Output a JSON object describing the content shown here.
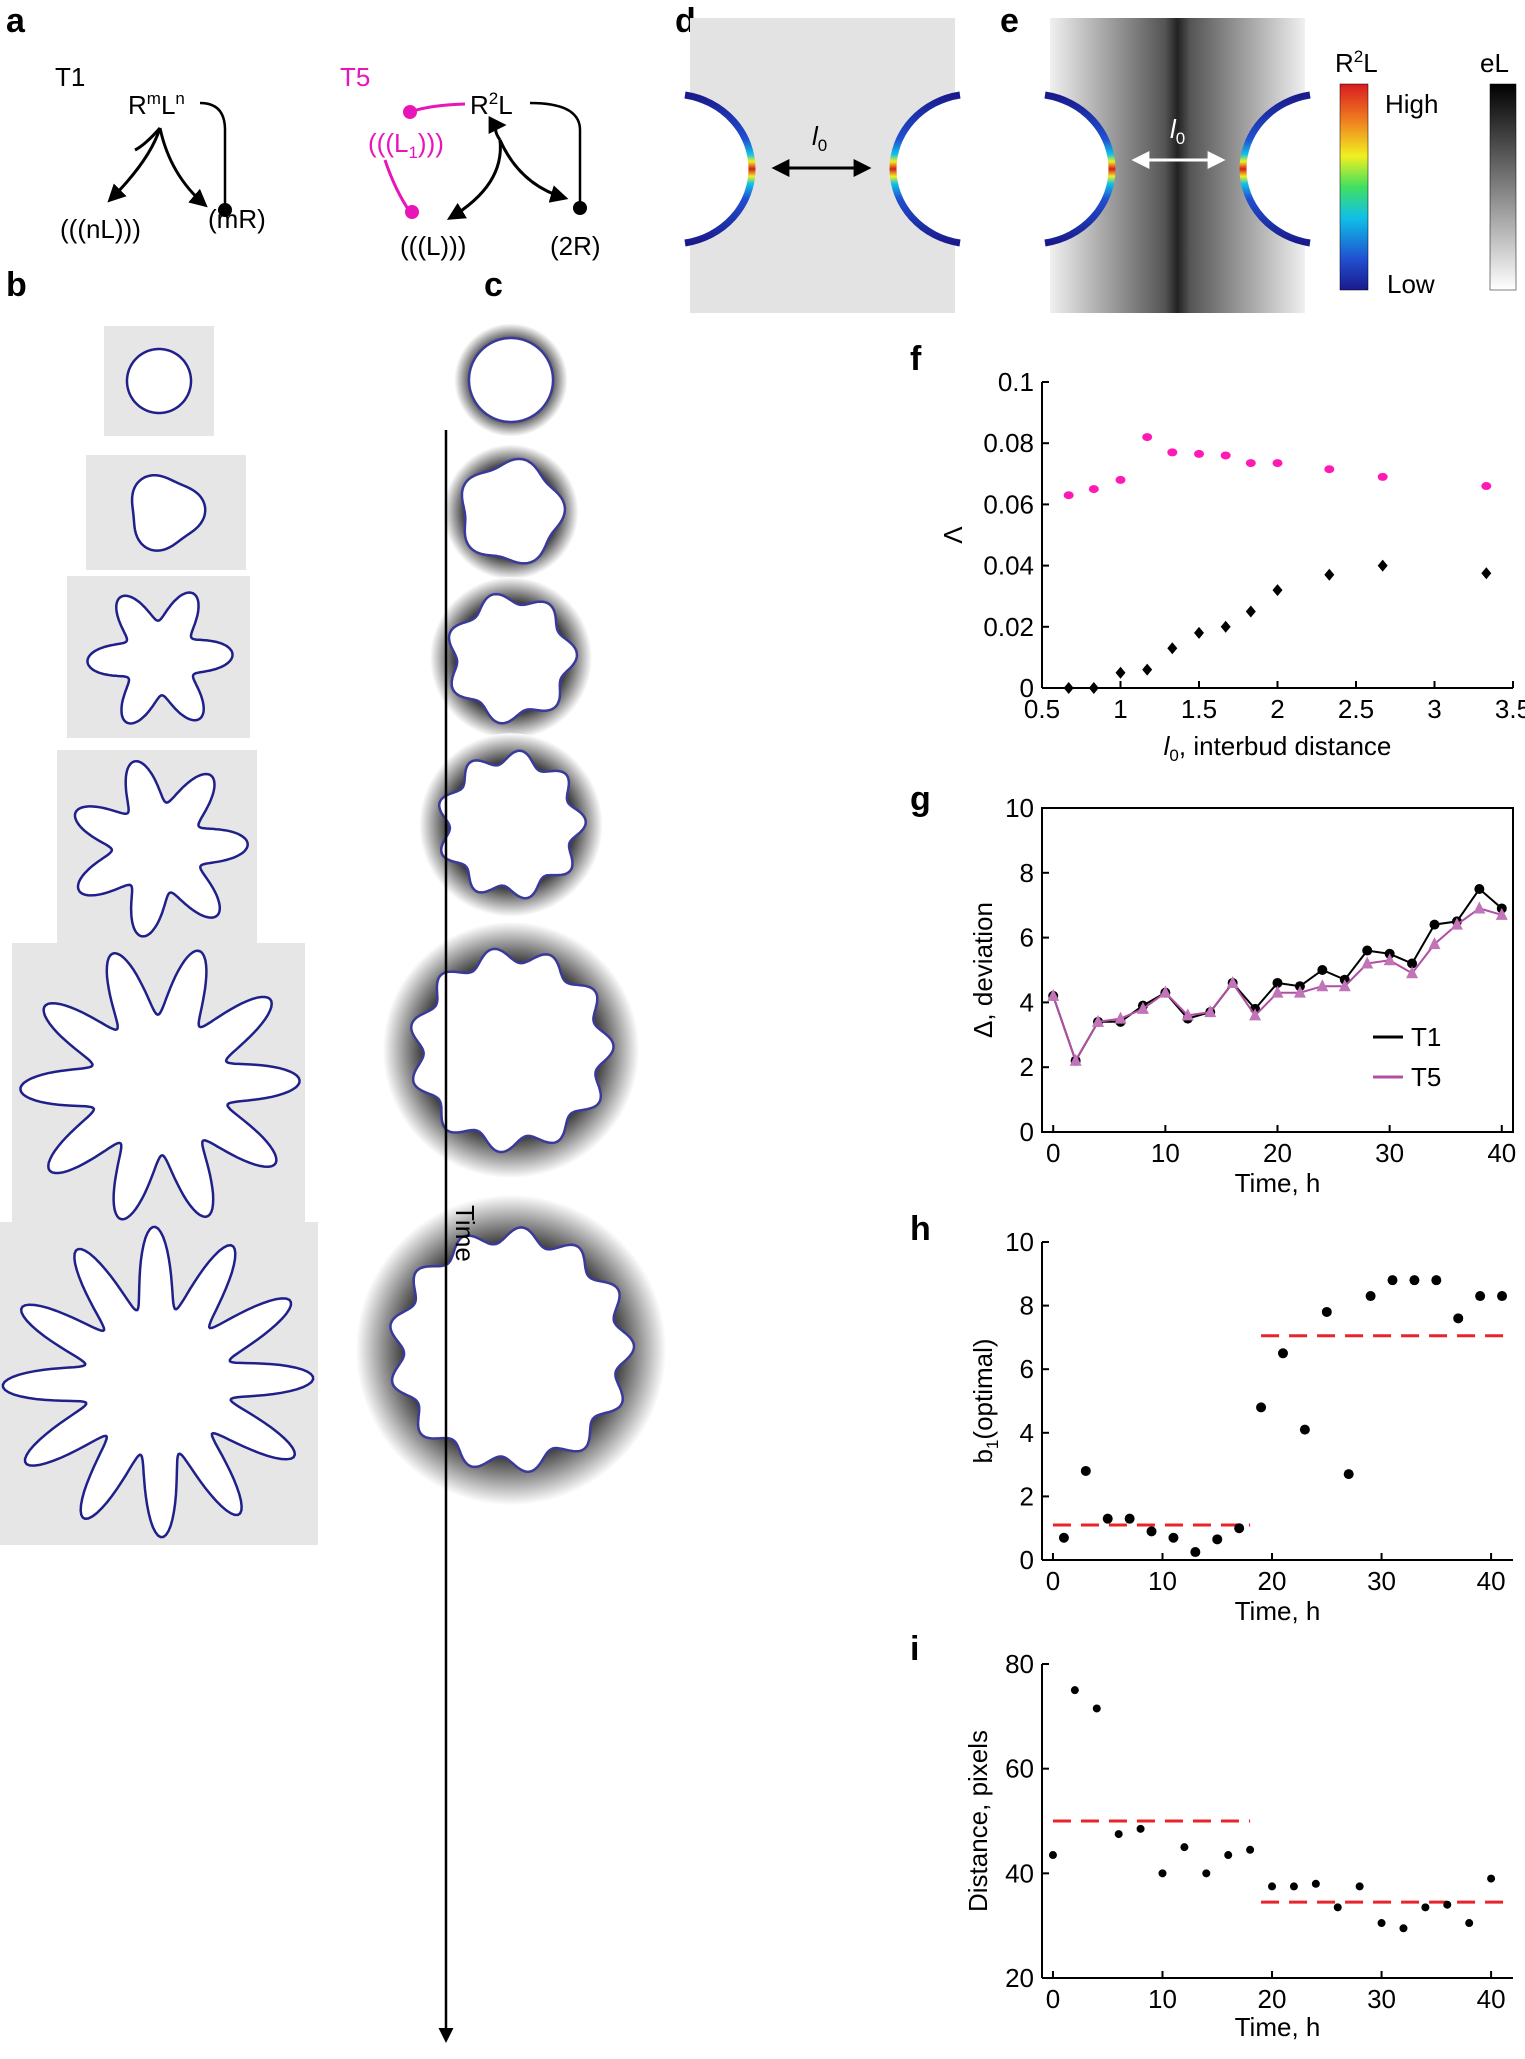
{
  "panel_labels": {
    "a": "a",
    "b": "b",
    "c": "c",
    "d": "d",
    "e": "e",
    "f": "f",
    "g": "g",
    "h": "h",
    "i": "i"
  },
  "panel_a": {
    "t1_title": "T1",
    "t1_complex": "R",
    "t1_complex_sup1": "m",
    "t1_complex_mid": "L",
    "t1_complex_sup2": "n",
    "t1_left": "(((nL)))",
    "t1_right": "(mR)",
    "t5_title": "T5",
    "t5_complex": "R",
    "t5_complex_sup": "2",
    "t5_complex_end": "L",
    "t5_inhibitor": "(((L",
    "t5_inhibitor_sub": "1",
    "t5_inhibitor_end": ")))",
    "t5_left": "(((L)))",
    "t5_right": "(2R)",
    "t5_color": "#e815b9"
  },
  "panel_c": {
    "time_label": "Time"
  },
  "panel_d": {
    "distance_label": "l",
    "distance_sub": "0"
  },
  "panel_e": {
    "distance_label": "l",
    "distance_sub": "0",
    "colorbar1_title": "R",
    "colorbar1_sup": "2",
    "colorbar1_title_end": "L",
    "colorbar2_title": "eL",
    "high_label": "High",
    "low_label": "Low"
  },
  "colors": {
    "magenta": "#ff1ab3",
    "red_dash": "#e8242a",
    "t5_line": "#b04fa3",
    "t5_marker": "#c174b8",
    "background_gray": "#e6e6e6"
  },
  "chart_data": [
    {
      "id": "f",
      "type": "scatter",
      "xlabel": "l",
      "xlabel_sub": "0",
      "xlabel_rest": ", interbud distance",
      "ylabel": "Λ",
      "xlim": [
        0.5,
        3.5
      ],
      "ylim": [
        0,
        0.1
      ],
      "xticks": [
        "0.5",
        "1",
        "1.5",
        "2",
        "2.5",
        "3",
        "3.5"
      ],
      "yticks": [
        "0",
        "0.02",
        "0.04",
        "0.06",
        "0.08",
        "0.1"
      ],
      "series": [
        {
          "color": "#ff1ab3",
          "marker": "circle",
          "x": [
            0.67,
            0.83,
            1.0,
            1.17,
            1.33,
            1.5,
            1.67,
            1.83,
            2.0,
            2.33,
            2.67,
            3.33
          ],
          "y": [
            0.063,
            0.065,
            0.068,
            0.082,
            0.077,
            0.0765,
            0.076,
            0.0735,
            0.0735,
            0.0715,
            0.069,
            0.066
          ]
        },
        {
          "color": "#000000",
          "marker": "diamond",
          "x": [
            0.67,
            0.83,
            1.0,
            1.17,
            1.33,
            1.5,
            1.67,
            1.83,
            2.0,
            2.33,
            2.67,
            3.33
          ],
          "y": [
            0.0,
            0.0,
            0.005,
            0.006,
            0.013,
            0.018,
            0.02,
            0.025,
            0.032,
            0.037,
            0.04,
            0.0375
          ]
        }
      ]
    },
    {
      "id": "g",
      "type": "line",
      "xlabel": "Time, h",
      "ylabel": "Δ, deviation",
      "xlim": [
        -1,
        41
      ],
      "ylim": [
        0,
        10
      ],
      "xticks": [
        "0",
        "10",
        "20",
        "30",
        "40"
      ],
      "yticks": [
        "0",
        "2",
        "4",
        "6",
        "8",
        "10"
      ],
      "legend_position": "bottom-right",
      "series": [
        {
          "name": "T1",
          "color": "#000000",
          "marker": "circle",
          "x": [
            0,
            2,
            4,
            6,
            8,
            10,
            12,
            14,
            16,
            18,
            20,
            22,
            24,
            26,
            28,
            30,
            32,
            34,
            36,
            38,
            40
          ],
          "y": [
            4.2,
            2.2,
            3.4,
            3.4,
            3.9,
            4.3,
            3.5,
            3.7,
            4.6,
            3.8,
            4.6,
            4.5,
            5.0,
            4.7,
            5.6,
            5.5,
            5.2,
            6.4,
            6.5,
            7.5,
            6.9
          ]
        },
        {
          "name": "T5",
          "color": "#b04fa3",
          "marker": "triangle",
          "x": [
            0,
            2,
            4,
            6,
            8,
            10,
            12,
            14,
            16,
            18,
            20,
            22,
            24,
            26,
            28,
            30,
            32,
            34,
            36,
            38,
            40
          ],
          "y": [
            4.2,
            2.2,
            3.4,
            3.5,
            3.8,
            4.3,
            3.6,
            3.7,
            4.6,
            3.6,
            4.3,
            4.3,
            4.5,
            4.5,
            5.2,
            5.3,
            4.9,
            5.8,
            6.4,
            6.9,
            6.7
          ]
        }
      ]
    },
    {
      "id": "h",
      "type": "scatter",
      "xlabel": "Time, h",
      "ylabel": "b",
      "ylabel_sub": "1",
      "ylabel_rest": "(optimal)",
      "xlim": [
        -1,
        42
      ],
      "ylim": [
        0,
        10
      ],
      "xticks": [
        "0",
        "10",
        "20",
        "30",
        "40"
      ],
      "yticks": [
        "0",
        "2",
        "4",
        "6",
        "8",
        "10"
      ],
      "points": {
        "x": [
          1,
          3,
          5,
          7,
          9,
          11,
          13,
          15,
          17,
          19,
          21,
          23,
          25,
          27,
          29,
          31,
          33,
          35,
          37,
          39,
          41
        ],
        "y": [
          0.7,
          2.8,
          1.3,
          1.3,
          0.9,
          0.7,
          0.25,
          0.65,
          1.0,
          4.8,
          6.5,
          4.1,
          7.8,
          2.7,
          8.3,
          8.8,
          8.8,
          8.8,
          7.6,
          8.3,
          8.3
        ]
      },
      "reference_lines": [
        {
          "x_start": 0,
          "x_end": 18,
          "y": 1.1,
          "color": "#e8242a",
          "style": "dashed"
        },
        {
          "x_start": 19,
          "x_end": 42,
          "y": 7.05,
          "color": "#e8242a",
          "style": "dashed"
        }
      ]
    },
    {
      "id": "i",
      "type": "scatter",
      "xlabel": "Time, h",
      "ylabel": "Distance, pixels",
      "xlim": [
        -1,
        42
      ],
      "ylim": [
        20,
        80
      ],
      "xticks": [
        "0",
        "10",
        "20",
        "30",
        "40"
      ],
      "yticks": [
        "20",
        "40",
        "60",
        "80"
      ],
      "points": {
        "x": [
          0,
          2,
          4,
          6,
          8,
          10,
          12,
          14,
          16,
          18,
          20,
          22,
          24,
          26,
          28,
          30,
          32,
          34,
          36,
          38,
          40
        ],
        "y": [
          43.5,
          75,
          71.5,
          47.5,
          48.5,
          40,
          45,
          40,
          43.5,
          44.5,
          37.5,
          37.5,
          38,
          33.5,
          37.5,
          30.5,
          29.5,
          33.5,
          34,
          30.5,
          39
        ]
      },
      "reference_lines": [
        {
          "x_start": 0,
          "x_end": 18,
          "y": 50,
          "color": "#e8242a",
          "style": "dashed"
        },
        {
          "x_start": 19,
          "x_end": 42,
          "y": 34.5,
          "color": "#e8242a",
          "style": "dashed"
        }
      ]
    }
  ]
}
